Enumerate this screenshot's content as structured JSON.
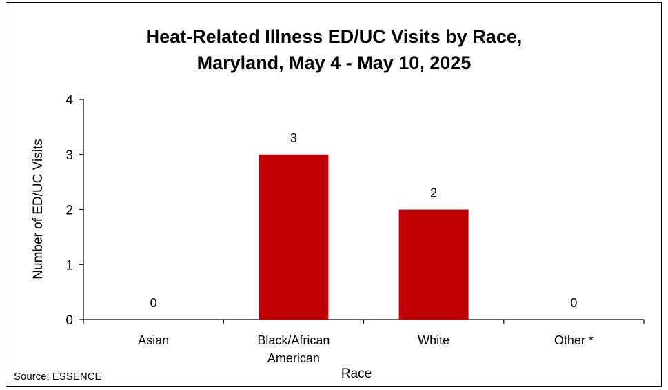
{
  "chart_data": {
    "type": "bar",
    "title": "Heat-Related Illness ED/UC Visits by Race,",
    "subtitle": "Maryland, May 4 - May 10, 2025",
    "xlabel": "Race",
    "ylabel": "Number of ED/UC Visits",
    "categories": [
      "Asian",
      "Black/African American",
      "White",
      "Other *"
    ],
    "category_lines": [
      [
        "Asian"
      ],
      [
        "Black/African",
        "American"
      ],
      [
        "White"
      ],
      [
        "Other *"
      ]
    ],
    "values": [
      0,
      3,
      2,
      0
    ],
    "ylim": [
      0,
      4
    ],
    "yticks": [
      "0",
      "1",
      "2",
      "3",
      "4"
    ],
    "data_labels": [
      "0",
      "3",
      "2",
      "0"
    ],
    "grid": false,
    "legend": "none",
    "bar_color": "#C00000"
  },
  "source": "Source: ESSENCE"
}
